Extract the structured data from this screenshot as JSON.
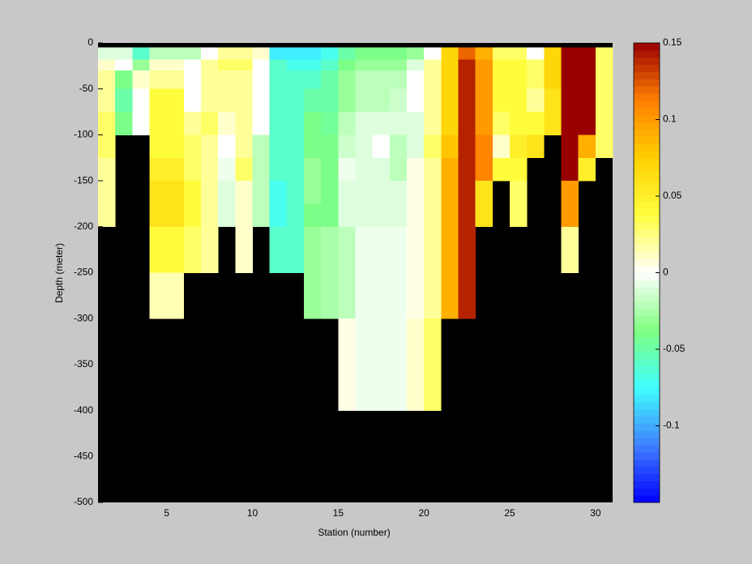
{
  "chart_data": {
    "type": "heatmap",
    "xlabel": "Station (number)",
    "ylabel": "Depth (meter)",
    "x": [
      1,
      2,
      3,
      4,
      5,
      6,
      7,
      8,
      9,
      10,
      11,
      12,
      13,
      14,
      15,
      16,
      17,
      18,
      19,
      20,
      21,
      22,
      23,
      24,
      25,
      26,
      27,
      28,
      29,
      30,
      31
    ],
    "y": [
      0,
      -5,
      -18,
      -30,
      -50,
      -75,
      -100,
      -125,
      -150,
      -175,
      -200,
      -250,
      -300,
      -400,
      -500
    ],
    "values": [
      [
        null,
        null,
        null,
        null,
        null,
        null,
        null,
        null,
        null,
        null,
        null,
        null,
        null,
        null,
        null,
        null,
        null,
        null,
        null,
        null,
        null,
        null,
        null,
        null,
        null,
        null,
        null,
        null,
        null,
        null
      ],
      [
        -0.01,
        -0.01,
        -0.06,
        -0.02,
        -0.02,
        -0.02,
        0,
        0.02,
        0.02,
        0.01,
        -0.08,
        -0.08,
        -0.08,
        -0.07,
        -0.05,
        -0.04,
        -0.04,
        -0.04,
        -0.03,
        0,
        0.07,
        0.12,
        0.09,
        0.03,
        0.03,
        0,
        0.07,
        0.15,
        0.15,
        0.03
      ],
      [
        0.01,
        0,
        -0.03,
        0.01,
        0.01,
        0,
        0.02,
        0.03,
        0.03,
        0,
        -0.06,
        -0.07,
        -0.07,
        -0.06,
        -0.04,
        -0.03,
        -0.03,
        -0.03,
        -0.01,
        0.02,
        0.07,
        0.14,
        0.1,
        0.04,
        0.04,
        0.03,
        0.07,
        0.15,
        0.15,
        0.03
      ],
      [
        0.02,
        -0.04,
        0.01,
        0.02,
        0.02,
        0,
        0.02,
        0.02,
        0.02,
        0,
        -0.06,
        -0.06,
        -0.06,
        -0.05,
        -0.03,
        -0.02,
        -0.02,
        -0.02,
        0,
        0.02,
        0.07,
        0.14,
        0.1,
        0.04,
        0.04,
        0.03,
        0.07,
        0.15,
        0.15,
        0.03
      ],
      [
        0.02,
        -0.05,
        0,
        0.04,
        0.04,
        0,
        0.02,
        0.02,
        0.02,
        0,
        -0.06,
        -0.06,
        -0.05,
        -0.05,
        -0.03,
        -0.02,
        -0.02,
        -0.015,
        0,
        0.02,
        0.07,
        0.14,
        0.1,
        0.04,
        0.04,
        0.02,
        0.06,
        0.15,
        0.15,
        0.03
      ],
      [
        0.03,
        -0.04,
        0,
        0.04,
        0.04,
        0.02,
        0.03,
        0.01,
        0.02,
        0,
        -0.06,
        -0.06,
        -0.04,
        -0.045,
        -0.02,
        -0.01,
        -0.01,
        -0.01,
        -0.01,
        0.02,
        0.07,
        0.14,
        0.1,
        0.03,
        0.04,
        0.04,
        0.06,
        0.15,
        0.15,
        0.03
      ],
      [
        0.03,
        null,
        null,
        0.04,
        0.04,
        0.03,
        0.02,
        0,
        0.02,
        -0.02,
        -0.06,
        -0.06,
        -0.04,
        -0.04,
        -0.015,
        -0.01,
        0,
        -0.02,
        -0.01,
        0.03,
        0.08,
        0.14,
        0.11,
        0.01,
        0.05,
        0.06,
        null,
        0.15,
        0.09,
        0.03
      ],
      [
        0.02,
        null,
        null,
        0.05,
        0.05,
        0.03,
        0.02,
        -0.005,
        0.03,
        -0.02,
        -0.06,
        -0.06,
        -0.03,
        -0.04,
        -0.005,
        -0.01,
        -0.01,
        -0.02,
        0.005,
        0.02,
        0.09,
        0.14,
        0.11,
        0.04,
        0.04,
        null,
        null,
        0.15,
        0.05,
        null
      ],
      [
        0.02,
        null,
        null,
        0.06,
        0.06,
        0.04,
        0.02,
        -0.01,
        0.01,
        -0.02,
        -0.07,
        -0.06,
        -0.03,
        -0.04,
        -0.01,
        -0.01,
        -0.01,
        -0.01,
        0.005,
        0.02,
        0.09,
        0.14,
        0.06,
        null,
        0.03,
        null,
        null,
        0.1,
        null,
        null
      ],
      [
        0.02,
        null,
        null,
        0.06,
        0.06,
        0.04,
        0.02,
        -0.01,
        0.01,
        -0.02,
        -0.07,
        -0.06,
        -0.04,
        -0.04,
        -0.01,
        -0.01,
        -0.01,
        -0.01,
        0.005,
        0.02,
        0.09,
        0.14,
        0.06,
        null,
        0.03,
        null,
        null,
        0.1,
        null,
        null
      ],
      [
        null,
        null,
        null,
        0.04,
        0.04,
        0.03,
        0.02,
        null,
        0.01,
        null,
        -0.06,
        -0.06,
        -0.03,
        -0.025,
        -0.02,
        -0.005,
        -0.005,
        -0.005,
        0.005,
        0.02,
        0.09,
        0.14,
        null,
        null,
        null,
        null,
        null,
        0.02,
        null,
        null
      ],
      [
        null,
        null,
        null,
        0.015,
        0.015,
        null,
        null,
        null,
        null,
        null,
        null,
        null,
        -0.03,
        -0.025,
        -0.02,
        -0.005,
        -0.005,
        -0.005,
        0.005,
        0.02,
        0.09,
        0.14,
        null,
        null,
        null,
        null,
        null,
        null,
        null,
        null
      ],
      [
        null,
        null,
        null,
        null,
        null,
        null,
        null,
        null,
        null,
        null,
        null,
        null,
        null,
        null,
        0.005,
        -0.005,
        -0.005,
        -0.005,
        0.01,
        0.03,
        null,
        null,
        null,
        null,
        null,
        null,
        null,
        null,
        null,
        null
      ],
      [
        null,
        null,
        null,
        null,
        null,
        null,
        null,
        null,
        null,
        null,
        null,
        null,
        null,
        null,
        null,
        null,
        null,
        null,
        null,
        null,
        null,
        null,
        null,
        null,
        null,
        null,
        null,
        null,
        null,
        null
      ]
    ],
    "xlim": [
      1,
      31
    ],
    "xticks": [
      5,
      10,
      15,
      20,
      25,
      30
    ],
    "ylim": [
      -500,
      0
    ],
    "yticks": [
      0,
      -50,
      -100,
      -150,
      -200,
      -250,
      -300,
      -350,
      -400,
      -450,
      -500
    ],
    "clim": [
      -0.15,
      0.15
    ],
    "cticks": [
      -0.1,
      -0.05,
      0,
      0.05,
      0.1,
      0.15
    ],
    "colormap": [
      "#0000ff",
      "#4080ff",
      "#40ffff",
      "#80ff80",
      "#ffffff",
      "#ffff40",
      "#ffd000",
      "#ff8000",
      "#990000"
    ],
    "background": "#000000",
    "colorbar": true
  }
}
